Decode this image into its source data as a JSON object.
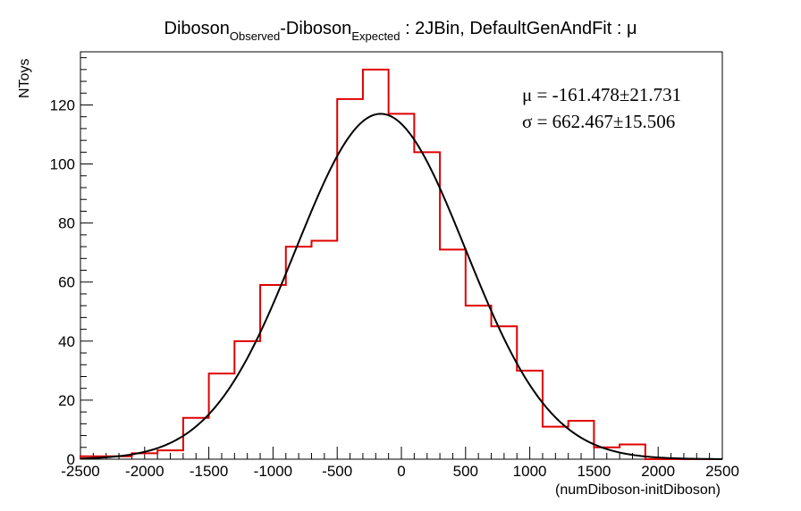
{
  "chart_data": {
    "type": "histogram",
    "title": {
      "part1": "Diboson",
      "sub1": "Observed",
      "part2": "-Diboson",
      "sub2": "Expected",
      "part3": " : 2JBin, DefaultGenAndFit : μ"
    },
    "xlabel": "(numDiboson-initDiboson)",
    "ylabel": "NToys",
    "xlim": [
      -2500,
      2500
    ],
    "ylim": [
      0,
      138
    ],
    "x_ticks": [
      -2500,
      -2000,
      -1500,
      -1000,
      -500,
      0,
      500,
      1000,
      1500,
      2000,
      2500
    ],
    "y_ticks": [
      0,
      20,
      40,
      60,
      80,
      100,
      120
    ],
    "bin_edges": [
      -2500,
      -2300,
      -2100,
      -1900,
      -1700,
      -1500,
      -1300,
      -1100,
      -900,
      -700,
      -500,
      -300,
      -100,
      100,
      300,
      500,
      700,
      900,
      1100,
      1300,
      1500,
      1700,
      1900,
      2100,
      2300,
      2500
    ],
    "bin_counts": [
      1,
      1,
      2,
      3,
      14,
      29,
      40,
      59,
      72,
      74,
      122,
      132,
      117,
      104,
      71,
      52,
      45,
      30,
      11,
      13,
      4,
      5,
      0,
      0,
      0
    ],
    "histogram_color": "#e00000",
    "fit": {
      "type": "gaussian",
      "mean": -161.478,
      "sigma": 662.467,
      "amplitude": 117,
      "color": "#000000"
    },
    "stats": {
      "mu_text": "μ = -161.478±21.731",
      "sigma_text": "σ = 662.467±15.506"
    },
    "grid": false
  }
}
